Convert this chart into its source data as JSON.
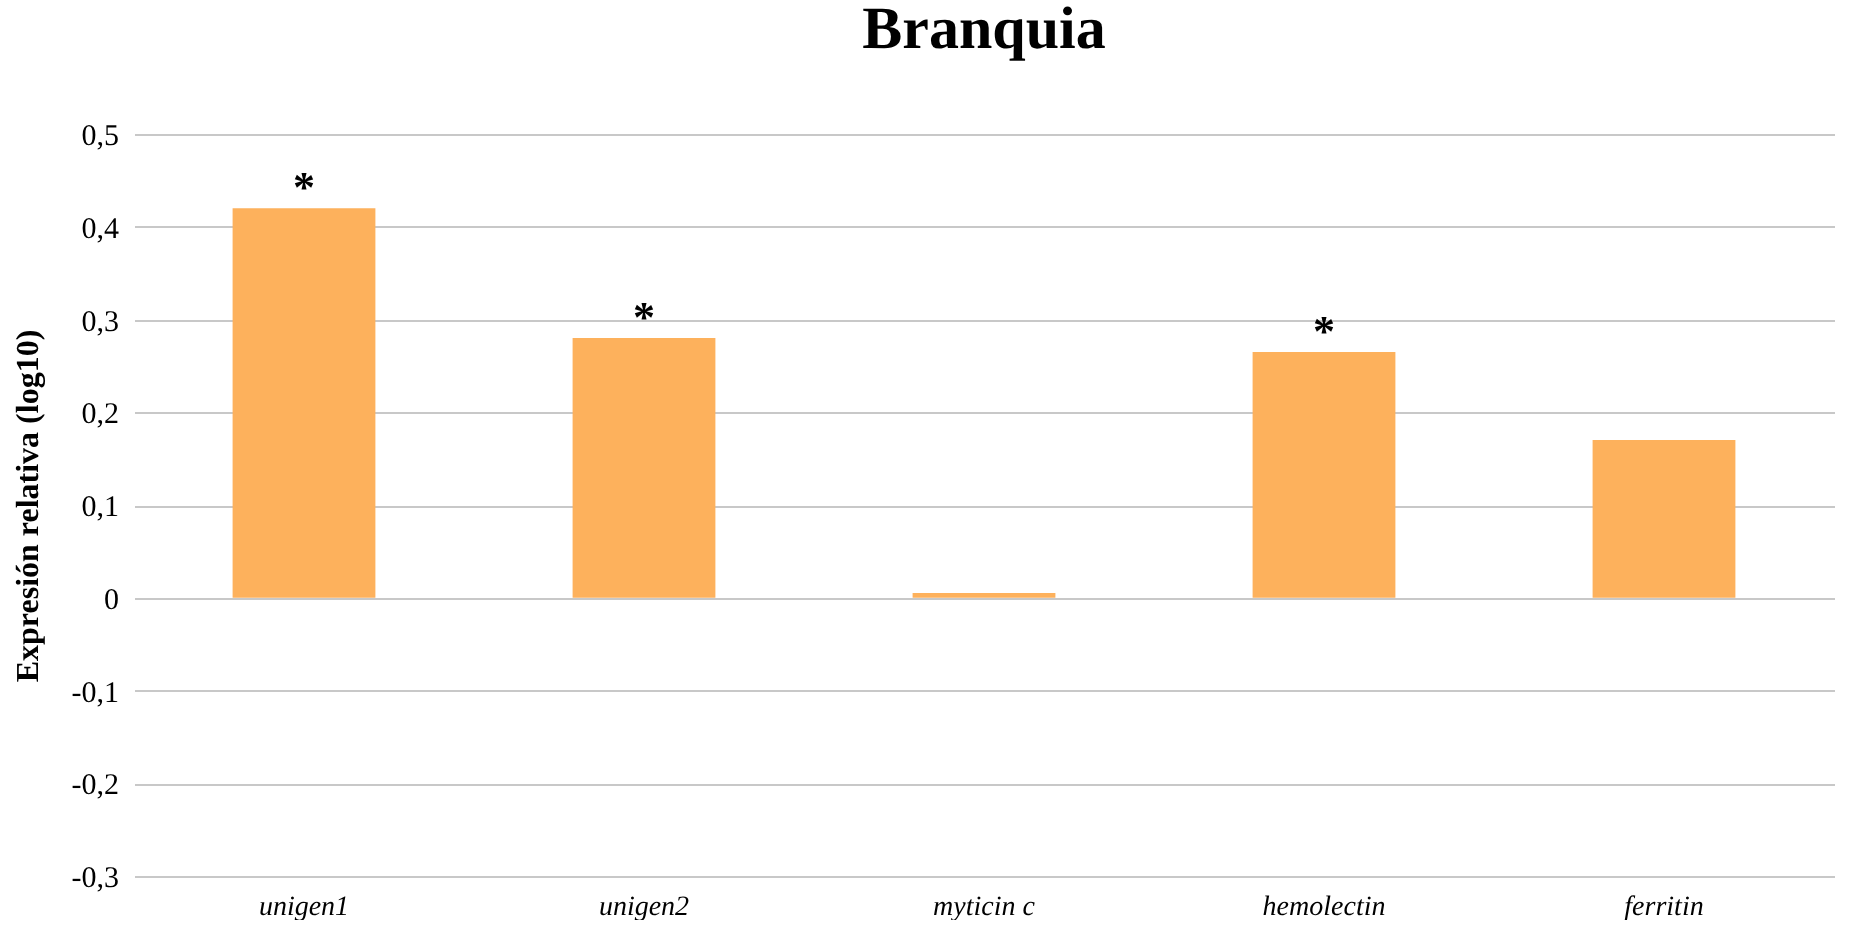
{
  "chart_data": {
    "type": "bar",
    "title": "Branquia",
    "ylabel": "Expresión relativa (log10)",
    "categories": [
      "unigen1",
      "unigen2",
      "myticin c",
      "hemolectin",
      "ferritin"
    ],
    "values": [
      0.42,
      0.28,
      0.005,
      0.265,
      0.17
    ],
    "color": "#fdb15c",
    "ylim": [
      -0.3,
      0.5
    ],
    "yticks": [
      {
        "value": -0.3,
        "label": "-0,3"
      },
      {
        "value": -0.2,
        "label": "-0,2"
      },
      {
        "value": -0.1,
        "label": "-0,1"
      },
      {
        "value": 0,
        "label": "0"
      },
      {
        "value": 0.1,
        "label": "0,1"
      },
      {
        "value": 0.2,
        "label": "0,2"
      },
      {
        "value": 0.3,
        "label": "0,3"
      },
      {
        "value": 0.4,
        "label": "0,4"
      },
      {
        "value": 0.5,
        "label": "0,5"
      }
    ],
    "grid": "y",
    "annotations": [
      {
        "text": "*",
        "x": "unigen1",
        "y": 0.42
      },
      {
        "text": "*",
        "x": "unigen2",
        "y": 0.28
      },
      {
        "text": "*",
        "x": "hemolectin",
        "y": 0.265
      }
    ]
  }
}
